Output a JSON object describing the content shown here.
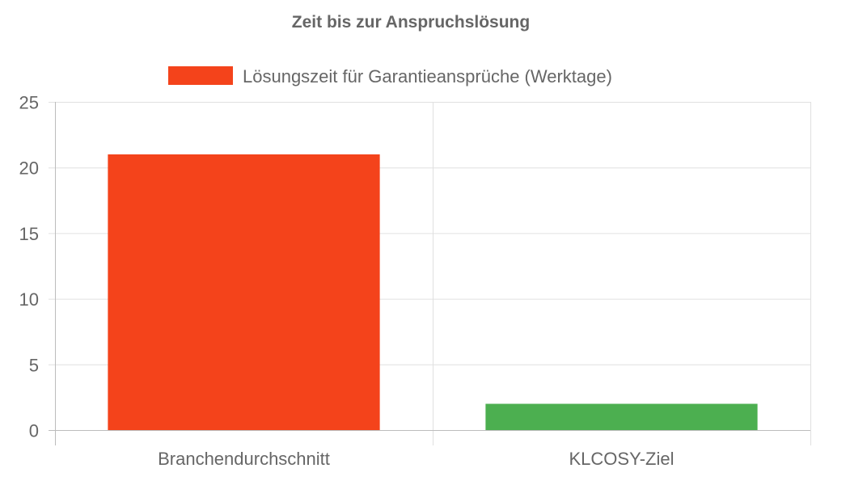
{
  "chart_data": {
    "type": "bar",
    "title": "Zeit bis zur Anspruchslösung",
    "categories": [
      "Branchendurchschnitt",
      "KLCOSY-Ziel"
    ],
    "series": [
      {
        "name": "Lösungszeit für Garantieansprüche (Werktage)",
        "values": [
          21,
          2
        ],
        "colors": [
          "#f4431b",
          "#4caf50"
        ],
        "legend_color": "#f4431b"
      }
    ],
    "xlabel": "",
    "ylabel": "",
    "ylim": [
      0,
      25
    ],
    "yticks": [
      "0",
      "5",
      "10",
      "15",
      "20",
      "25"
    ],
    "grid": true,
    "legend_position": "top-center"
  }
}
